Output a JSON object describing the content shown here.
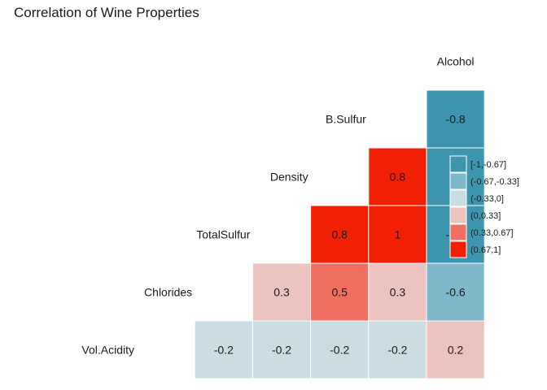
{
  "chart_data": {
    "type": "heatmap",
    "title": "Correlation of Wine Properties",
    "variables": [
      "Vol.Acidity",
      "Chlorides",
      "TotalSulfur",
      "Density",
      "B.Sulfur",
      "Alcohol"
    ],
    "cells": [
      {
        "row": 0,
        "col": 1,
        "value": -0.2,
        "label": "-0.2",
        "bin": 2
      },
      {
        "row": 0,
        "col": 2,
        "value": -0.2,
        "label": "-0.2",
        "bin": 2
      },
      {
        "row": 0,
        "col": 3,
        "value": -0.2,
        "label": "-0.2",
        "bin": 2
      },
      {
        "row": 0,
        "col": 4,
        "value": -0.2,
        "label": "-0.2",
        "bin": 2
      },
      {
        "row": 0,
        "col": 5,
        "value": 0.2,
        "label": "0.2",
        "bin": 3
      },
      {
        "row": 1,
        "col": 2,
        "value": 0.3,
        "label": "0.3",
        "bin": 3
      },
      {
        "row": 1,
        "col": 3,
        "value": 0.5,
        "label": "0.5",
        "bin": 4
      },
      {
        "row": 1,
        "col": 4,
        "value": 0.3,
        "label": "0.3",
        "bin": 3
      },
      {
        "row": 1,
        "col": 5,
        "value": -0.6,
        "label": "-0.6",
        "bin": 1
      },
      {
        "row": 2,
        "col": 3,
        "value": 0.8,
        "label": "0.8",
        "bin": 5
      },
      {
        "row": 2,
        "col": 4,
        "value": 1,
        "label": "1",
        "bin": 5
      },
      {
        "row": 2,
        "col": 5,
        "value": -0.8,
        "label": "-0.8",
        "bin": 0
      },
      {
        "row": 3,
        "col": 4,
        "value": 0.8,
        "label": "0.8",
        "bin": 5
      },
      {
        "row": 3,
        "col": 5,
        "value": -1,
        "label": "-1",
        "bin": 0
      },
      {
        "row": 4,
        "col": 5,
        "value": -0.8,
        "label": "-0.8",
        "bin": 0
      }
    ],
    "legend": {
      "placement": "right",
      "entries": [
        {
          "label": "[-1,-0.67]",
          "color": "#3d96ae"
        },
        {
          "label": "(-0.67,-0.33]",
          "color": "#7fb8ca"
        },
        {
          "label": "(-0.33,0]",
          "color": "#c9dde3"
        },
        {
          "label": "(0,0.33]",
          "color": "#ecc3bf"
        },
        {
          "label": "(0.33,0.67]",
          "color": "#ef6f61"
        },
        {
          "label": "(0.67,1]",
          "color": "#f21f05"
        }
      ]
    },
    "grid": false
  }
}
